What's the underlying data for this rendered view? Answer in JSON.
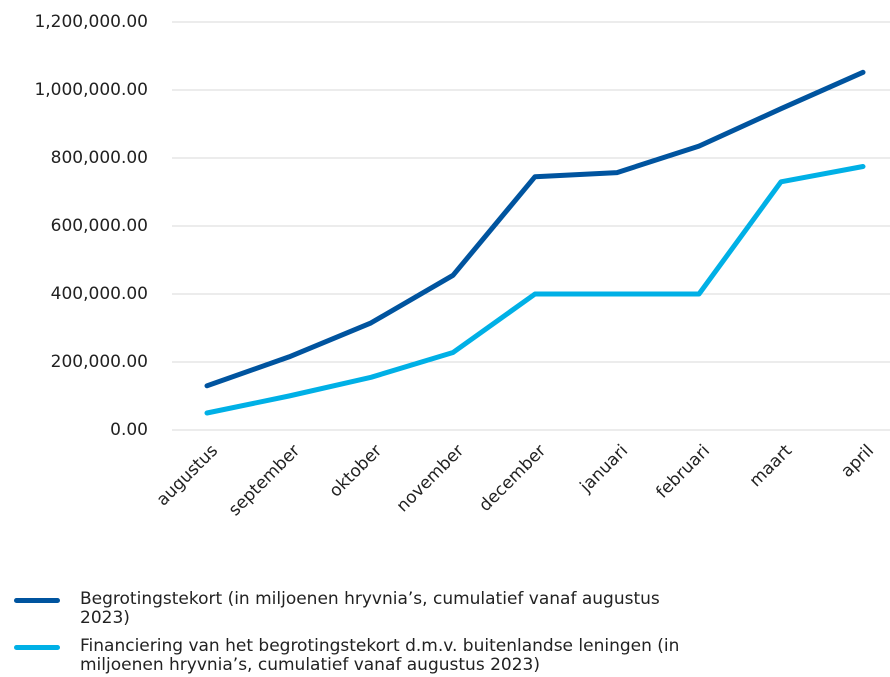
{
  "chart_data": {
    "type": "line",
    "categories": [
      "augustus",
      "september",
      "oktober",
      "november",
      "december",
      "januari",
      "februari",
      "maart",
      "april"
    ],
    "series": [
      {
        "name": "Begrotingstekort (in miljoenen hryvnia’s, cumulatief vanaf augustus 2023)",
        "color": "#00549f",
        "values": [
          130000,
          215000,
          315000,
          455000,
          745000,
          757000,
          835000,
          945000,
          1052000
        ]
      },
      {
        "name": "Financiering van het begrotingstekort d.m.v. buitenlandse leningen (in miljoenen hryvnia’s, cumulatief vanaf augustus 2023)",
        "color": "#00b0e6",
        "values": [
          50000,
          100000,
          155000,
          228000,
          400000,
          400000,
          400000,
          730000,
          775000
        ]
      }
    ],
    "ylim": [
      0,
      1200000
    ],
    "yticks": [
      {
        "value": 0,
        "label": "0.00"
      },
      {
        "value": 200000,
        "label": "200,000.00"
      },
      {
        "value": 400000,
        "label": "400,000.00"
      },
      {
        "value": 600000,
        "label": "600,000.00"
      },
      {
        "value": 800000,
        "label": "800,000.00"
      },
      {
        "value": 1000000,
        "label": "1,000,000.00"
      },
      {
        "value": 1200000,
        "label": "1,200,000.00"
      }
    ],
    "grid": true
  }
}
